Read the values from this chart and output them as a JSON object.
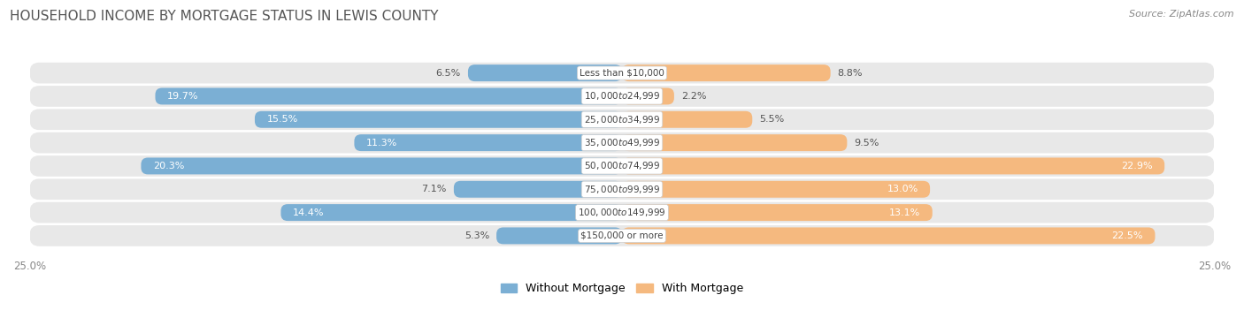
{
  "title": "HOUSEHOLD INCOME BY MORTGAGE STATUS IN LEWIS COUNTY",
  "source": "Source: ZipAtlas.com",
  "categories": [
    "Less than $10,000",
    "$10,000 to $24,999",
    "$25,000 to $34,999",
    "$35,000 to $49,999",
    "$50,000 to $74,999",
    "$75,000 to $99,999",
    "$100,000 to $149,999",
    "$150,000 or more"
  ],
  "without_mortgage": [
    6.5,
    19.7,
    15.5,
    11.3,
    20.3,
    7.1,
    14.4,
    5.3
  ],
  "with_mortgage": [
    8.8,
    2.2,
    5.5,
    9.5,
    22.9,
    13.0,
    13.1,
    22.5
  ],
  "color_without": "#7bafd4",
  "color_with": "#f5b97f",
  "bg_row_color": "#e8e8e8",
  "bg_row_color_alt": "#f0f0f0",
  "axis_limit": 25.0,
  "legend_without": "Without Mortgage",
  "legend_with": "With Mortgage",
  "title_fontsize": 11,
  "source_fontsize": 8,
  "bar_label_fontsize": 8,
  "cat_label_fontsize": 7.5,
  "axis_label_fontsize": 8.5,
  "label_inside_threshold": 10.0,
  "label_color_inside": "white",
  "label_color_outside_left": "#555555",
  "label_color_outside_right": "#555555"
}
